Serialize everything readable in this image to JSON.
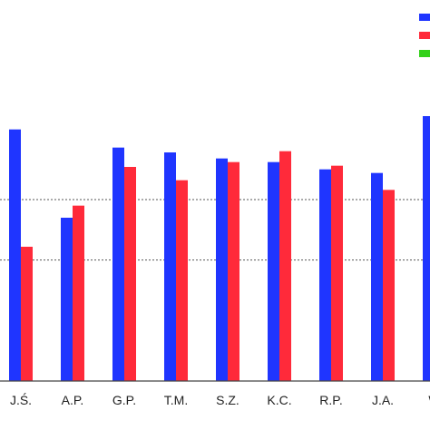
{
  "chart_data": {
    "type": "bar",
    "categories": [
      "J.Ś.",
      "A.P.",
      "G.P.",
      "T.M.",
      "S.Z.",
      "K.C.",
      "R.P.",
      "J.A.",
      "W"
    ],
    "series": [
      {
        "color": "#1F35FF",
        "values": [
          208,
          135,
          193,
          189,
          184,
          181,
          175,
          172,
          219
        ]
      },
      {
        "color": "#FF2A3A",
        "values": [
          111,
          145,
          177,
          166,
          181,
          190,
          178,
          158,
          null
        ]
      },
      {
        "color": "#33D11A",
        "values": [
          null,
          null,
          null,
          null,
          null,
          null,
          null,
          null,
          null
        ]
      }
    ],
    "xlabel": "",
    "ylabel": "",
    "ylim": [
      0,
      300
    ],
    "reference_lines": [
      100,
      150
    ],
    "legend_position": "top-right"
  }
}
